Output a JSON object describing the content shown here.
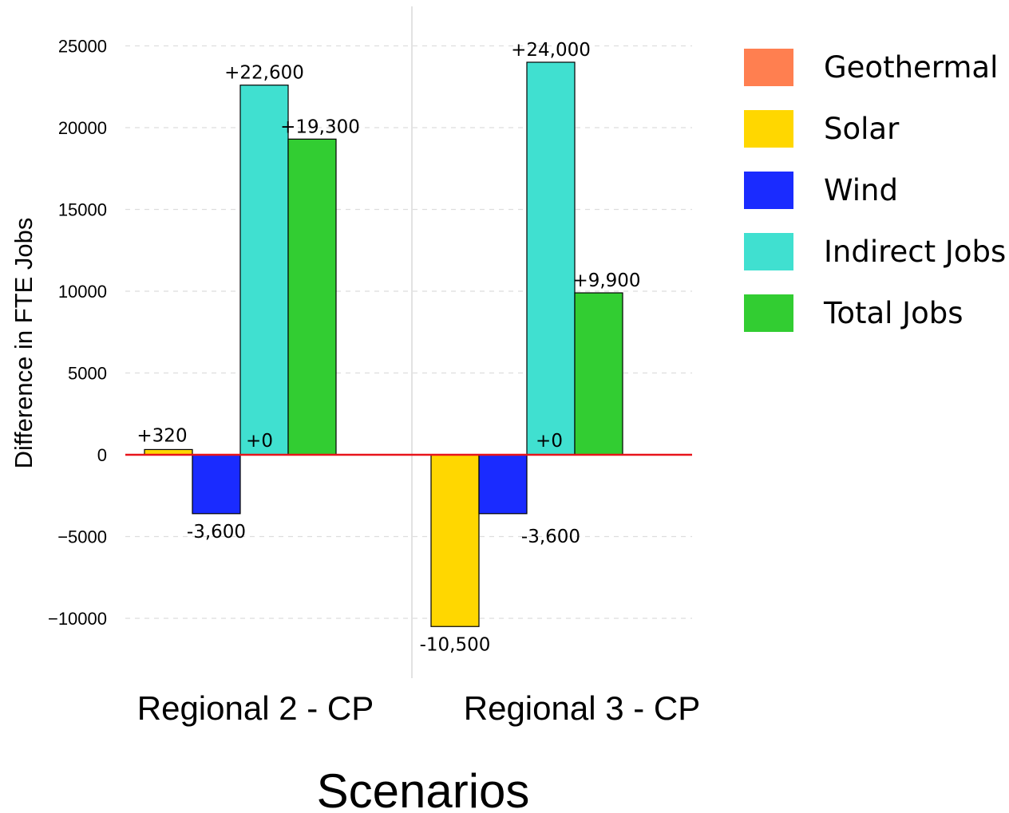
{
  "chart_data": {
    "type": "bar",
    "categories": [
      "Regional 2 - CP",
      "Regional 3 - CP"
    ],
    "xlabel": "Scenarios",
    "ylabel": "Difference in FTE Jobs",
    "ylim": [
      -12000,
      26000
    ],
    "yticks": [
      25000,
      20000,
      15000,
      10000,
      5000,
      0,
      -5000,
      -10000
    ],
    "ytick_labels": [
      "25000",
      "20000",
      "15000",
      "10000",
      "5000",
      "0",
      "−5000",
      "−10000"
    ],
    "grid": true,
    "legend_position": "right",
    "series": [
      {
        "name": "Geothermal",
        "color": "#FF7F50",
        "values": [
          0,
          0
        ],
        "labels": [
          "",
          ""
        ]
      },
      {
        "name": "Solar",
        "color": "#FFD700",
        "values": [
          320,
          -10500
        ],
        "labels": [
          "+320",
          "-10,500"
        ]
      },
      {
        "name": "Wind",
        "color": "#1A2BFF",
        "values": [
          -3600,
          -3600
        ],
        "labels": [
          "-3,600",
          "-3,600"
        ]
      },
      {
        "name": "Indirect Jobs",
        "color": "#40E0D0",
        "values": [
          22600,
          24000
        ],
        "labels": [
          "+22,600",
          "+24,000"
        ]
      },
      {
        "name": "Total Jobs",
        "color": "#32CD32",
        "values": [
          19300,
          9900
        ],
        "labels": [
          "+19,300",
          "+9,900"
        ]
      }
    ],
    "annotations": [
      {
        "category": "Regional 2 - CP",
        "text": "+0"
      },
      {
        "category": "Regional 3 - CP",
        "text": "+0"
      }
    ],
    "zero_line_color": "#E8141B"
  }
}
